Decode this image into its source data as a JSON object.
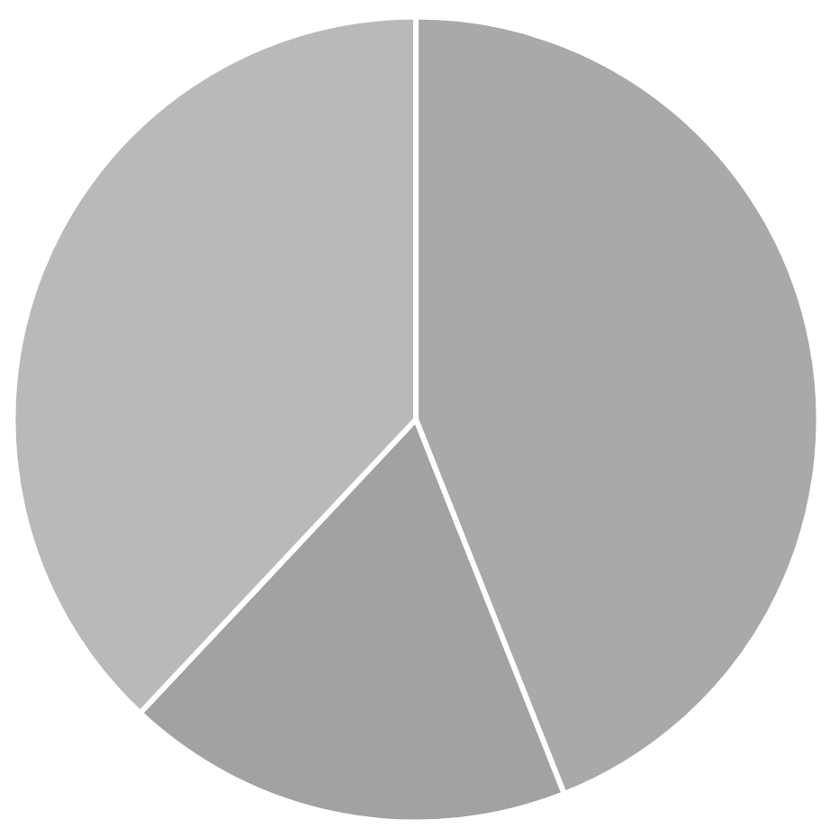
{
  "chart_data": {
    "type": "pie",
    "categories": [
      null,
      null,
      null
    ],
    "values": [
      44,
      18,
      38
    ],
    "colors": [
      "#a9a9a9",
      "#a2a2a2",
      "#b9b9b9"
    ]
  }
}
